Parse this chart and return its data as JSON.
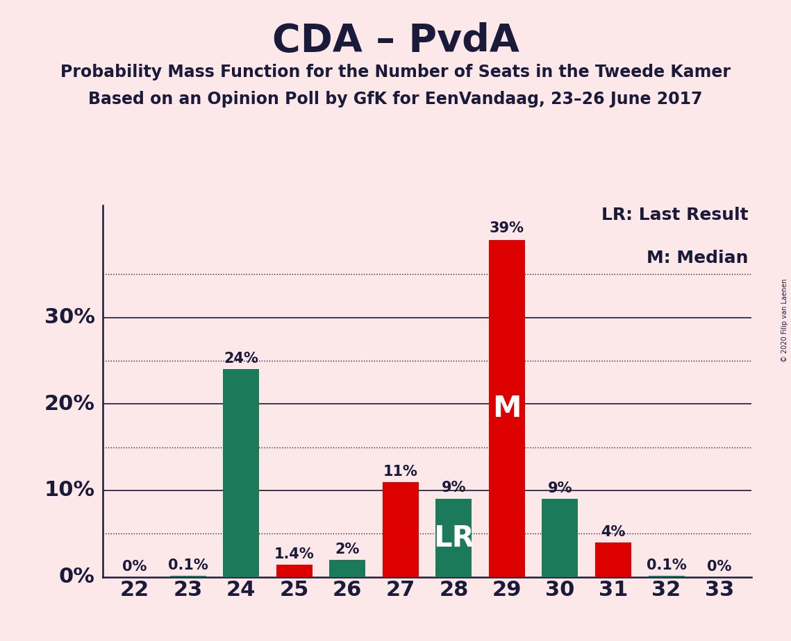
{
  "title": "CDA – PvdA",
  "subtitle1": "Probability Mass Function for the Number of Seats in the Tweede Kamer",
  "subtitle2": "Based on an Opinion Poll by GfK for EenVandaag, 23–26 June 2017",
  "copyright": "© 2020 Filip van Laenen",
  "categories": [
    22,
    23,
    24,
    25,
    26,
    27,
    28,
    29,
    30,
    31,
    32,
    33
  ],
  "values": [
    0.001,
    0.1,
    24.0,
    1.4,
    2.0,
    11.0,
    9.0,
    39.0,
    9.0,
    4.0,
    0.1,
    0.001
  ],
  "colors": [
    "#dd0000",
    "#1a7a5a",
    "#1a7a5a",
    "#dd0000",
    "#1a7a5a",
    "#dd0000",
    "#1a7a5a",
    "#dd0000",
    "#1a7a5a",
    "#dd0000",
    "#1a7a5a",
    "#dd0000"
  ],
  "bar_labels": [
    "0%",
    "0.1%",
    "24%",
    "1.4%",
    "2%",
    "11%",
    "9%",
    "39%",
    "9%",
    "4%",
    "0.1%",
    "0%"
  ],
  "special_labels": {
    "28": "LR",
    "29": "M"
  },
  "legend_text1": "LR: Last Result",
  "legend_text2": "M: Median",
  "background_color": "#fce8e8",
  "title_fontsize": 40,
  "subtitle_fontsize": 17,
  "ytick_labels": [
    "0%",
    "10%",
    "20%",
    "30%"
  ],
  "ytick_values": [
    0,
    10,
    20,
    30
  ],
  "ylim": [
    0,
    43
  ],
  "dotted_lines": [
    5,
    15,
    25,
    35
  ],
  "solid_lines": [
    10,
    20,
    30
  ]
}
